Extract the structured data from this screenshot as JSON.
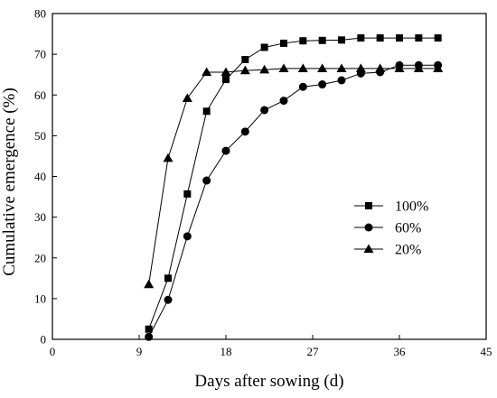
{
  "chart_data": {
    "type": "line",
    "xlabel": "Days after sowing (d)",
    "ylabel": "Cumulative emergence (%)",
    "xlim": [
      0,
      45
    ],
    "ylim": [
      0,
      80
    ],
    "xticks": [
      0,
      9,
      18,
      27,
      36,
      45
    ],
    "yticks": [
      0,
      10,
      20,
      30,
      40,
      50,
      60,
      70,
      80
    ],
    "grid": false,
    "legend_position": "center-right",
    "series": [
      {
        "name": "100%",
        "marker": "square",
        "x": [
          10,
          12,
          14,
          16,
          18,
          20,
          22,
          24,
          26,
          28,
          30,
          32,
          34,
          36,
          38,
          40
        ],
        "y": [
          2.5,
          15,
          35.7,
          56,
          63.8,
          68.7,
          71.7,
          72.7,
          73.3,
          73.4,
          73.5,
          74,
          74,
          74,
          74,
          74
        ]
      },
      {
        "name": "60%",
        "marker": "circle",
        "x": [
          10,
          12,
          14,
          16,
          18,
          20,
          22,
          24,
          26,
          28,
          30,
          32,
          34,
          36,
          38,
          40
        ],
        "y": [
          0.6,
          9.7,
          25.3,
          39,
          46.3,
          51,
          56.3,
          58.6,
          62,
          62.6,
          63.6,
          65.3,
          65.6,
          67.3,
          67.3,
          67.3
        ]
      },
      {
        "name": "20%",
        "marker": "triangle",
        "x": [
          10,
          12,
          14,
          16,
          18,
          20,
          22,
          24,
          26,
          28,
          30,
          32,
          34,
          36,
          38,
          40
        ],
        "y": [
          13.5,
          44.5,
          59.2,
          65.6,
          65.6,
          66,
          66.2,
          66.5,
          66.5,
          66.5,
          66.5,
          66.5,
          66.5,
          66.5,
          66.5,
          66.5
        ]
      }
    ]
  }
}
